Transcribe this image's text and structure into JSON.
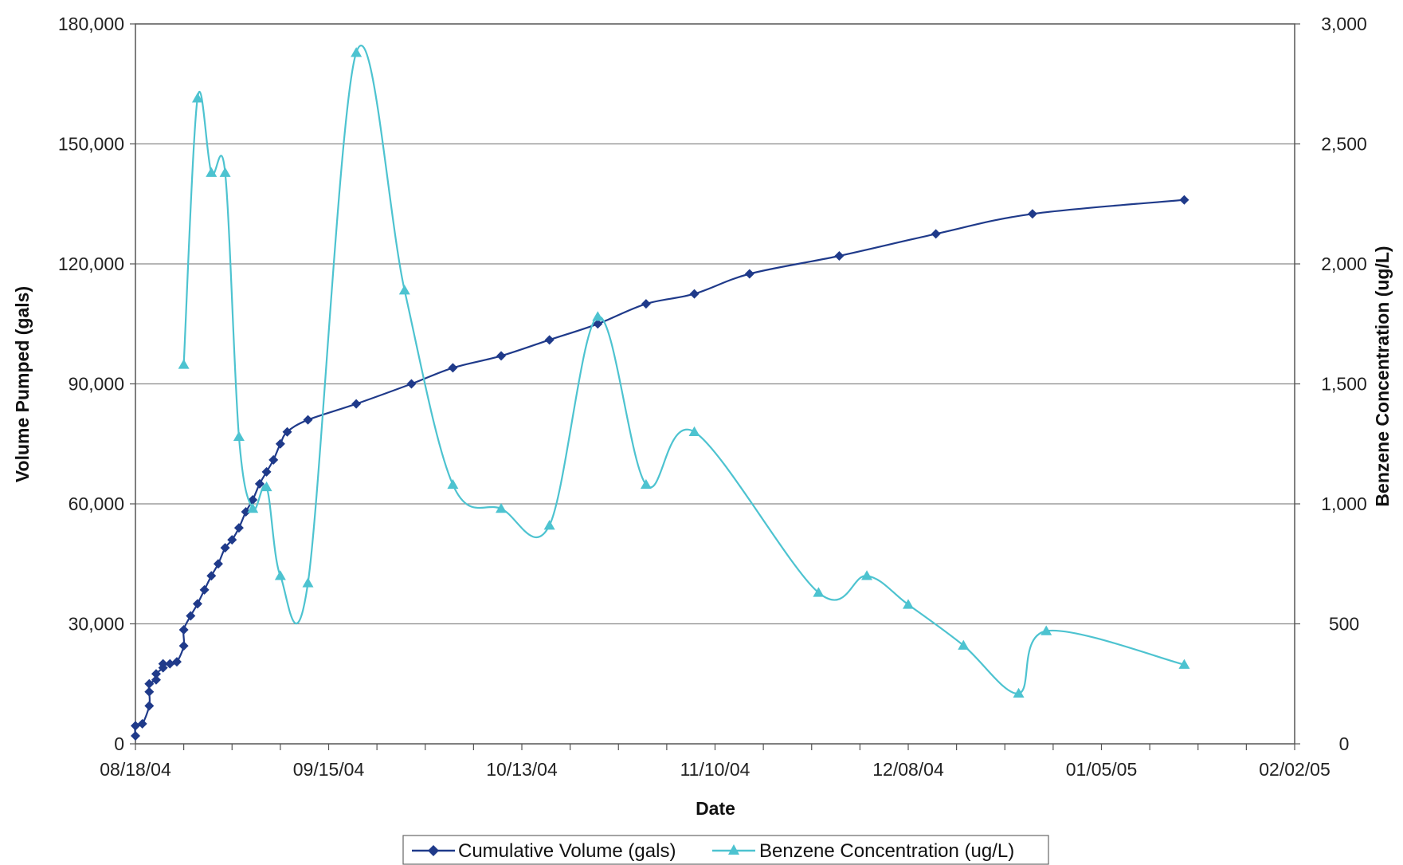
{
  "chart_data": {
    "type": "line",
    "xlabel": "Date",
    "ylabel": "Volume Pumped (gals)",
    "y2label": "Benzene Concentration (ug/L)",
    "x_tick_labels": [
      "08/18/04",
      "09/15/04",
      "10/13/04",
      "11/10/04",
      "12/08/04",
      "01/05/05",
      "02/02/05"
    ],
    "x_range": [
      "2004-08-18",
      "2005-02-02"
    ],
    "x_minor_tick_interval_days": 7,
    "ylim": [
      0,
      180000
    ],
    "y_ticks": [
      0,
      30000,
      60000,
      90000,
      120000,
      150000,
      180000
    ],
    "y_tick_labels": [
      "0",
      "30,000",
      "60,000",
      "90,000",
      "120,000",
      "150,000",
      "180,000"
    ],
    "y2lim": [
      0,
      3000
    ],
    "y2_ticks": [
      0,
      500,
      1000,
      1500,
      2000,
      2500,
      3000
    ],
    "y2_tick_labels": [
      "0",
      "500",
      "1,000",
      "1,500",
      "2,000",
      "2,500",
      "3,000"
    ],
    "grid": "horizontal",
    "legend_position": "bottom",
    "series": [
      {
        "name": "Cumulative Volume (gals)",
        "axis": "left",
        "color": "#1f3a8a",
        "marker": "diamond",
        "points": [
          [
            "2004-08-18",
            2000
          ],
          [
            "2004-08-18",
            4500
          ],
          [
            "2004-08-19",
            5000
          ],
          [
            "2004-08-20",
            9500
          ],
          [
            "2004-08-20",
            13000
          ],
          [
            "2004-08-20",
            15000
          ],
          [
            "2004-08-21",
            16000
          ],
          [
            "2004-08-21",
            17500
          ],
          [
            "2004-08-22",
            19000
          ],
          [
            "2004-08-22",
            20000
          ],
          [
            "2004-08-23",
            20000
          ],
          [
            "2004-08-24",
            20500
          ],
          [
            "2004-08-25",
            24500
          ],
          [
            "2004-08-25",
            28500
          ],
          [
            "2004-08-26",
            32000
          ],
          [
            "2004-08-27",
            35000
          ],
          [
            "2004-08-28",
            38500
          ],
          [
            "2004-08-29",
            42000
          ],
          [
            "2004-08-30",
            45000
          ],
          [
            "2004-08-31",
            49000
          ],
          [
            "2004-09-01",
            51000
          ],
          [
            "2004-09-02",
            54000
          ],
          [
            "2004-09-03",
            58000
          ],
          [
            "2004-09-04",
            61000
          ],
          [
            "2004-09-05",
            65000
          ],
          [
            "2004-09-06",
            68000
          ],
          [
            "2004-09-07",
            71000
          ],
          [
            "2004-09-08",
            75000
          ],
          [
            "2004-09-09",
            78000
          ],
          [
            "2004-09-12",
            81000
          ],
          [
            "2004-09-19",
            85000
          ],
          [
            "2004-09-27",
            90000
          ],
          [
            "2004-10-03",
            94000
          ],
          [
            "2004-10-10",
            97000
          ],
          [
            "2004-10-17",
            101000
          ],
          [
            "2004-10-24",
            105000
          ],
          [
            "2004-10-31",
            110000
          ],
          [
            "2004-11-07",
            112500
          ],
          [
            "2004-11-15",
            117500
          ],
          [
            "2004-11-28",
            122000
          ],
          [
            "2004-12-12",
            127500
          ],
          [
            "2004-12-26",
            132500
          ],
          [
            "2005-01-17",
            136000
          ]
        ]
      },
      {
        "name": "Benzene Concentration (ug/L)",
        "axis": "right",
        "color": "#4dc3d0",
        "marker": "triangle",
        "points": [
          [
            "2004-08-25",
            1580
          ],
          [
            "2004-08-27",
            2690
          ],
          [
            "2004-08-29",
            2380
          ],
          [
            "2004-08-31",
            2380
          ],
          [
            "2004-09-02",
            1280
          ],
          [
            "2004-09-04",
            980
          ],
          [
            "2004-09-06",
            1070
          ],
          [
            "2004-09-08",
            700
          ],
          [
            "2004-09-12",
            670
          ],
          [
            "2004-09-19",
            2880
          ],
          [
            "2004-09-26",
            1890
          ],
          [
            "2004-10-03",
            1080
          ],
          [
            "2004-10-10",
            980
          ],
          [
            "2004-10-17",
            910
          ],
          [
            "2004-10-24",
            1780
          ],
          [
            "2004-10-31",
            1080
          ],
          [
            "2004-11-07",
            1300
          ],
          [
            "2004-11-25",
            630
          ],
          [
            "2004-12-02",
            700
          ],
          [
            "2004-12-08",
            580
          ],
          [
            "2004-12-16",
            410
          ],
          [
            "2004-12-24",
            210
          ],
          [
            "2004-12-28",
            470
          ],
          [
            "2005-01-17",
            330
          ]
        ]
      }
    ]
  }
}
